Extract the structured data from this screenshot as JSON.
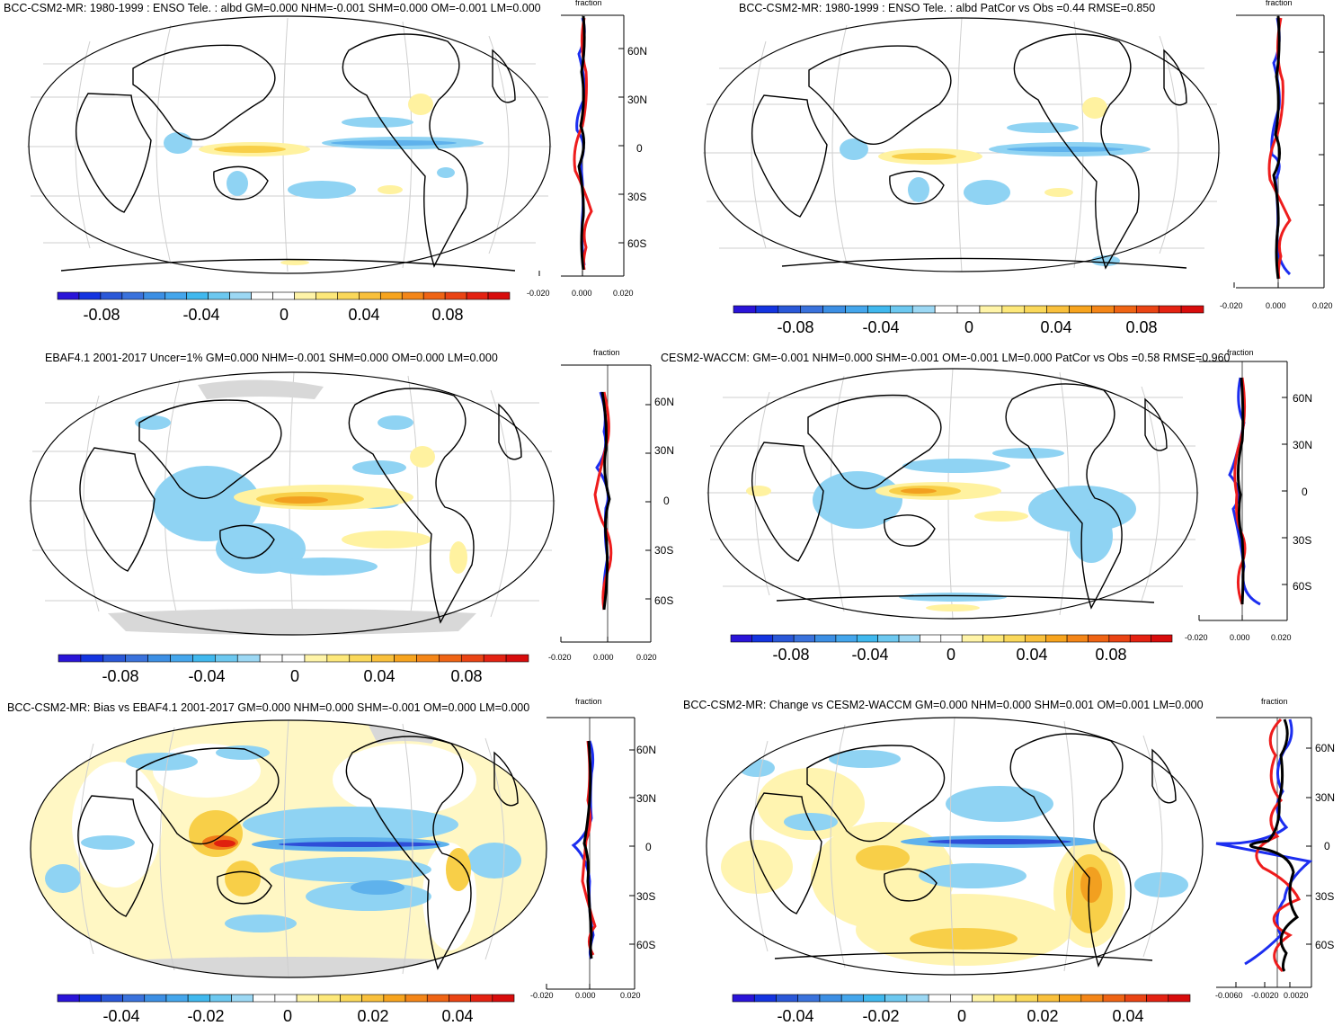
{
  "colors": [
    "#2a14d8",
    "#1434e0",
    "#2a58d8",
    "#3a72dc",
    "#3c8fe4",
    "#44a6ec",
    "#40b8ee",
    "#6cc8f0",
    "#9cd8f4",
    "#ffffff",
    "#ffffff",
    "#fff4a8",
    "#fde87a",
    "#fad85a",
    "#f9c03c",
    "#f7a41e",
    "#f48618",
    "#ef6414",
    "#ea4414",
    "#e42212",
    "#d80c0c"
  ],
  "panels": [
    {
      "title": "BCC-CSM2-MR: 1980-1999 : ENSO Tele. : albd GM=0.000 NHM=-0.001 SHM=0.000 OM=-0.001 LM=0.000",
      "lat_labels": [
        "60N",
        "30N",
        "0",
        "30S",
        "60S"
      ],
      "xtick_labels": [
        "-0.020",
        "0.000",
        "0.020"
      ],
      "xaxis_title": "fraction",
      "colorbar_labels": [
        "-0.08",
        "-0.04",
        "0",
        "0.04",
        "0.08"
      ]
    },
    {
      "title": "BCC-CSM2-MR: 1980-1999 : ENSO Tele. : albd PatCor vs Obs =0.44 RMSE=0.850",
      "lat_labels": [
        "",
        "",
        "",
        "",
        ""
      ],
      "xtick_labels": [
        "-0.020",
        "0.000",
        "0.020"
      ],
      "xaxis_title": "fraction",
      "colorbar_labels": [
        "-0.08",
        "-0.04",
        "0",
        "0.04",
        "0.08"
      ]
    },
    {
      "title": "EBAF4.1 2001-2017 Uncer=1% GM=0.000 NHM=-0.001 SHM=0.000 OM=0.000 LM=0.000",
      "lat_labels": [
        "60N",
        "30N",
        "0",
        "30S",
        "60S"
      ],
      "xtick_labels": [
        "-0.020",
        "0.000",
        "0.020"
      ],
      "xaxis_title": "fraction",
      "colorbar_labels": [
        "-0.08",
        "-0.04",
        "0",
        "0.04",
        "0.08"
      ]
    },
    {
      "title": "CESM2-WACCM: GM=-0.001 NHM=0.000 SHM=-0.001 OM=-0.001 LM=0.000 PatCor vs Obs =0.58 RMSE=0.960",
      "lat_labels": [
        "60N",
        "30N",
        "0",
        "30S",
        "60S"
      ],
      "xtick_labels": [
        "-0.020",
        "0.000",
        "0.020"
      ],
      "xaxis_title": "fraction",
      "colorbar_labels": [
        "-0.08",
        "-0.04",
        "0",
        "0.04",
        "0.08"
      ]
    },
    {
      "title": "BCC-CSM2-MR: Bias vs EBAF4.1 2001-2017 GM=0.000 NHM=0.000 SHM=-0.001 OM=0.000 LM=0.000",
      "lat_labels": [
        "60N",
        "30N",
        "0",
        "30S",
        "60S"
      ],
      "xtick_labels": [
        "-0.020",
        "0.000",
        "0.020"
      ],
      "xaxis_title": "fraction",
      "colorbar_labels": [
        "-0.04",
        "-0.02",
        "0",
        "0.02",
        "0.04"
      ]
    },
    {
      "title": "BCC-CSM2-MR: Change vs CESM2-WACCM GM=0.000 NHM=0.000 SHM=0.001 OM=0.001 LM=0.000",
      "lat_labels": [
        "60N",
        "30N",
        "0",
        "30S",
        "60S"
      ],
      "xtick_labels": [
        "-0.0060",
        "-0.0020",
        "0.0020"
      ],
      "xaxis_title": "fraction",
      "colorbar_labels": [
        "-0.04",
        "-0.02",
        "0",
        "0.02",
        "0.04"
      ]
    }
  ]
}
